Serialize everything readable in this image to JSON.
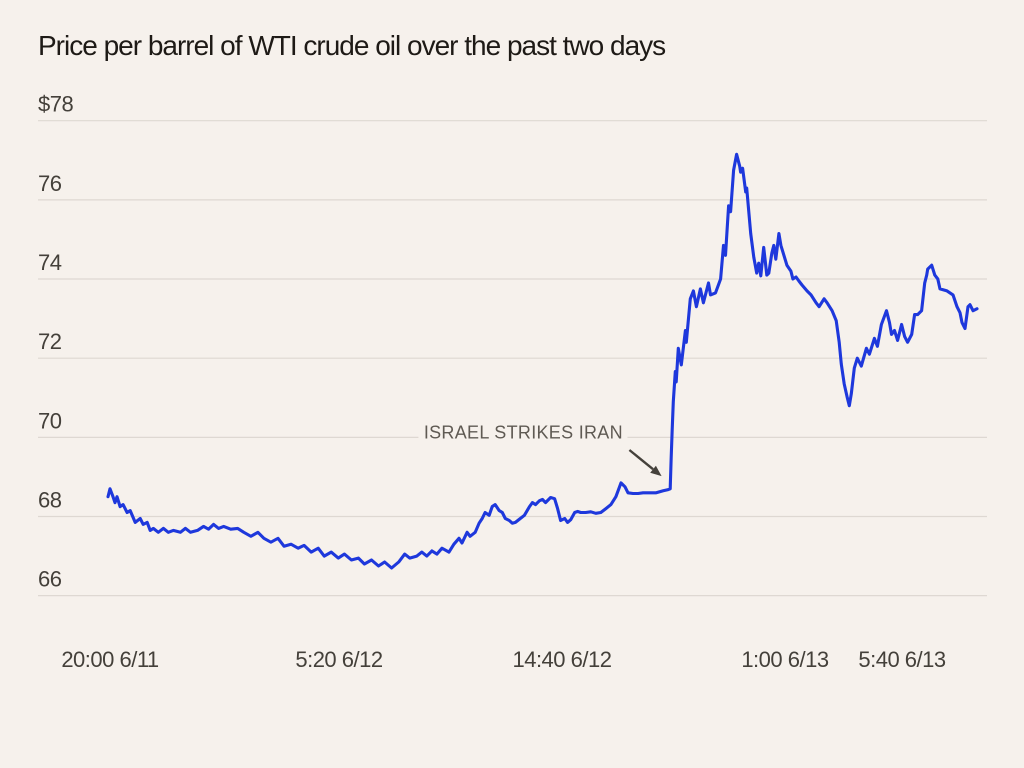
{
  "title": "Price per barrel of WTI crude oil over the past two days",
  "colors": {
    "background": "#f6f1ec",
    "title_text": "#1e1a16",
    "axis_text": "#44403a",
    "gridline": "#ded8d2",
    "series_line": "#1e38dc",
    "annotation_text": "#5f5a53",
    "annotation_arrow": "#45413b"
  },
  "chart_data": {
    "type": "line",
    "title": "Price per barrel of WTI crude oil over the past two days",
    "grid": true,
    "legend": false,
    "ylim": [
      66,
      78
    ],
    "y_ticks": [
      {
        "value": 78,
        "label": "$78"
      },
      {
        "value": 76,
        "label": "76"
      },
      {
        "value": 74,
        "label": "74"
      },
      {
        "value": 72,
        "label": "72"
      },
      {
        "value": 70,
        "label": "70"
      },
      {
        "value": 68,
        "label": "68"
      },
      {
        "value": 66,
        "label": "66"
      }
    ],
    "x_ticks": [
      {
        "position": 0.0023,
        "label": "20:00 6/11"
      },
      {
        "position": 0.2658,
        "label": "5:20 6/12"
      },
      {
        "position": 0.5224,
        "label": "14:40 6/12"
      },
      {
        "position": 0.779,
        "label": "1:00 6/13"
      },
      {
        "position": 0.9137,
        "label": "5:40 6/13"
      }
    ],
    "annotation": {
      "label": "ISRAEL STRIKES IRAN",
      "text_position": [
        0.478,
        70.12
      ],
      "arrow_from": [
        0.6,
        69.68
      ],
      "arrow_to": [
        0.637,
        69.02
      ]
    },
    "series": [
      {
        "name": "WTI crude oil price (USD per barrel)",
        "points": [
          [
            0.0,
            68.5
          ],
          [
            0.0023,
            68.7
          ],
          [
            0.0058,
            68.5
          ],
          [
            0.0081,
            68.35
          ],
          [
            0.0104,
            68.5
          ],
          [
            0.0139,
            68.25
          ],
          [
            0.0174,
            68.3
          ],
          [
            0.022,
            68.1
          ],
          [
            0.0255,
            68.15
          ],
          [
            0.0313,
            67.85
          ],
          [
            0.037,
            67.95
          ],
          [
            0.0405,
            67.8
          ],
          [
            0.0451,
            67.85
          ],
          [
            0.0486,
            67.65
          ],
          [
            0.0521,
            67.7
          ],
          [
            0.0579,
            67.6
          ],
          [
            0.0637,
            67.7
          ],
          [
            0.0694,
            67.6
          ],
          [
            0.0752,
            67.65
          ],
          [
            0.0833,
            67.6
          ],
          [
            0.0891,
            67.7
          ],
          [
            0.0949,
            67.6
          ],
          [
            0.103,
            67.65
          ],
          [
            0.1099,
            67.75
          ],
          [
            0.1157,
            67.68
          ],
          [
            0.1215,
            67.8
          ],
          [
            0.1273,
            67.7
          ],
          [
            0.1331,
            67.75
          ],
          [
            0.1412,
            67.68
          ],
          [
            0.1493,
            67.7
          ],
          [
            0.1563,
            67.6
          ],
          [
            0.1644,
            67.5
          ],
          [
            0.1725,
            67.6
          ],
          [
            0.1794,
            67.45
          ],
          [
            0.1875,
            67.35
          ],
          [
            0.1956,
            67.45
          ],
          [
            0.2025,
            67.25
          ],
          [
            0.2106,
            67.3
          ],
          [
            0.2188,
            67.2
          ],
          [
            0.2257,
            67.27
          ],
          [
            0.2338,
            67.1
          ],
          [
            0.2419,
            67.2
          ],
          [
            0.2488,
            67.0
          ],
          [
            0.2569,
            67.1
          ],
          [
            0.265,
            66.95
          ],
          [
            0.272,
            67.05
          ],
          [
            0.2801,
            66.9
          ],
          [
            0.2882,
            66.95
          ],
          [
            0.2951,
            66.8
          ],
          [
            0.3032,
            66.9
          ],
          [
            0.3113,
            66.75
          ],
          [
            0.3183,
            66.85
          ],
          [
            0.3264,
            66.7
          ],
          [
            0.3345,
            66.85
          ],
          [
            0.3414,
            67.05
          ],
          [
            0.3472,
            66.95
          ],
          [
            0.3553,
            67.0
          ],
          [
            0.3611,
            67.1
          ],
          [
            0.3669,
            67.0
          ],
          [
            0.3727,
            67.13
          ],
          [
            0.3785,
            67.05
          ],
          [
            0.3843,
            67.2
          ],
          [
            0.3924,
            67.1
          ],
          [
            0.3981,
            67.3
          ],
          [
            0.4039,
            67.45
          ],
          [
            0.4074,
            67.33
          ],
          [
            0.4132,
            67.6
          ],
          [
            0.4167,
            67.5
          ],
          [
            0.4225,
            67.6
          ],
          [
            0.4271,
            67.83
          ],
          [
            0.4306,
            67.95
          ],
          [
            0.434,
            68.1
          ],
          [
            0.4387,
            68.03
          ],
          [
            0.4421,
            68.25
          ],
          [
            0.4456,
            68.3
          ],
          [
            0.4502,
            68.15
          ],
          [
            0.4537,
            68.1
          ],
          [
            0.4572,
            67.95
          ],
          [
            0.4618,
            67.9
          ],
          [
            0.4653,
            67.83
          ],
          [
            0.4688,
            67.85
          ],
          [
            0.4745,
            67.95
          ],
          [
            0.4792,
            68.03
          ],
          [
            0.485,
            68.25
          ],
          [
            0.4884,
            68.35
          ],
          [
            0.4919,
            68.3
          ],
          [
            0.4965,
            68.4
          ],
          [
            0.5,
            68.43
          ],
          [
            0.5035,
            68.35
          ],
          [
            0.5093,
            68.48
          ],
          [
            0.5139,
            68.45
          ],
          [
            0.5174,
            68.2
          ],
          [
            0.5208,
            67.9
          ],
          [
            0.5255,
            67.95
          ],
          [
            0.5289,
            67.85
          ],
          [
            0.5324,
            67.92
          ],
          [
            0.537,
            68.1
          ],
          [
            0.5405,
            68.13
          ],
          [
            0.544,
            68.1
          ],
          [
            0.5497,
            68.1
          ],
          [
            0.5556,
            68.12
          ],
          [
            0.5613,
            68.08
          ],
          [
            0.5671,
            68.1
          ],
          [
            0.5729,
            68.2
          ],
          [
            0.5787,
            68.3
          ],
          [
            0.5845,
            68.5
          ],
          [
            0.5903,
            68.85
          ],
          [
            0.5949,
            68.75
          ],
          [
            0.5984,
            68.6
          ],
          [
            0.6042,
            68.58
          ],
          [
            0.61,
            68.58
          ],
          [
            0.6157,
            68.6
          ],
          [
            0.6238,
            68.6
          ],
          [
            0.6308,
            68.6
          ],
          [
            0.6389,
            68.65
          ],
          [
            0.6447,
            68.68
          ],
          [
            0.647,
            68.7
          ],
          [
            0.6481,
            69.5
          ],
          [
            0.6493,
            70.2
          ],
          [
            0.6505,
            70.9
          ],
          [
            0.6528,
            71.66
          ],
          [
            0.6539,
            71.4
          ],
          [
            0.6563,
            72.25
          ],
          [
            0.6597,
            71.83
          ],
          [
            0.6644,
            72.7
          ],
          [
            0.6655,
            72.4
          ],
          [
            0.6701,
            73.5
          ],
          [
            0.6736,
            73.7
          ],
          [
            0.6771,
            73.3
          ],
          [
            0.6817,
            73.75
          ],
          [
            0.6852,
            73.4
          ],
          [
            0.691,
            73.9
          ],
          [
            0.6933,
            73.6
          ],
          [
            0.6991,
            73.65
          ],
          [
            0.7049,
            74.0
          ],
          [
            0.7083,
            74.85
          ],
          [
            0.7106,
            74.6
          ],
          [
            0.7141,
            75.85
          ],
          [
            0.7164,
            75.7
          ],
          [
            0.7199,
            76.75
          ],
          [
            0.7234,
            77.15
          ],
          [
            0.7269,
            76.85
          ],
          [
            0.728,
            76.7
          ],
          [
            0.7303,
            76.8
          ],
          [
            0.7338,
            76.2
          ],
          [
            0.735,
            76.3
          ],
          [
            0.7396,
            75.15
          ],
          [
            0.7431,
            74.55
          ],
          [
            0.7465,
            74.15
          ],
          [
            0.7488,
            74.4
          ],
          [
            0.7512,
            74.08
          ],
          [
            0.7546,
            74.8
          ],
          [
            0.7581,
            74.1
          ],
          [
            0.7604,
            74.15
          ],
          [
            0.7639,
            74.65
          ],
          [
            0.7662,
            74.85
          ],
          [
            0.7685,
            74.5
          ],
          [
            0.772,
            75.15
          ],
          [
            0.7743,
            74.85
          ],
          [
            0.7778,
            74.6
          ],
          [
            0.7813,
            74.35
          ],
          [
            0.7859,
            74.2
          ],
          [
            0.7882,
            74.0
          ],
          [
            0.7917,
            74.05
          ],
          [
            0.7951,
            73.95
          ],
          [
            0.7986,
            73.85
          ],
          [
            0.8044,
            73.7
          ],
          [
            0.809,
            73.6
          ],
          [
            0.8148,
            73.4
          ],
          [
            0.8183,
            73.3
          ],
          [
            0.8241,
            73.5
          ],
          [
            0.8275,
            73.4
          ],
          [
            0.8333,
            73.2
          ],
          [
            0.838,
            72.95
          ],
          [
            0.8414,
            72.4
          ],
          [
            0.8438,
            71.85
          ],
          [
            0.8472,
            71.35
          ],
          [
            0.8507,
            71.0
          ],
          [
            0.853,
            70.8
          ],
          [
            0.8553,
            71.1
          ],
          [
            0.8588,
            71.75
          ],
          [
            0.8623,
            72.0
          ],
          [
            0.8669,
            71.8
          ],
          [
            0.8727,
            72.25
          ],
          [
            0.8762,
            72.1
          ],
          [
            0.8819,
            72.5
          ],
          [
            0.8854,
            72.3
          ],
          [
            0.89,
            72.85
          ],
          [
            0.8958,
            73.2
          ],
          [
            0.8993,
            72.9
          ],
          [
            0.9016,
            72.6
          ],
          [
            0.9051,
            72.7
          ],
          [
            0.9086,
            72.45
          ],
          [
            0.9132,
            72.85
          ],
          [
            0.9167,
            72.55
          ],
          [
            0.9201,
            72.4
          ],
          [
            0.9248,
            72.6
          ],
          [
            0.9282,
            73.1
          ],
          [
            0.9317,
            73.1
          ],
          [
            0.9363,
            73.2
          ],
          [
            0.9398,
            73.9
          ],
          [
            0.9421,
            74.1
          ],
          [
            0.9433,
            74.25
          ],
          [
            0.9479,
            74.35
          ],
          [
            0.9514,
            74.1
          ],
          [
            0.9549,
            74.0
          ],
          [
            0.9574,
            73.75
          ],
          [
            0.9655,
            73.7
          ],
          [
            0.9689,
            73.65
          ],
          [
            0.9724,
            73.6
          ],
          [
            0.977,
            73.3
          ],
          [
            0.9804,
            73.15
          ],
          [
            0.9827,
            72.9
          ],
          [
            0.9862,
            72.75
          ],
          [
            0.9896,
            73.3
          ],
          [
            0.9919,
            73.35
          ],
          [
            0.9954,
            73.2
          ],
          [
            1.0,
            73.25
          ]
        ]
      }
    ]
  }
}
